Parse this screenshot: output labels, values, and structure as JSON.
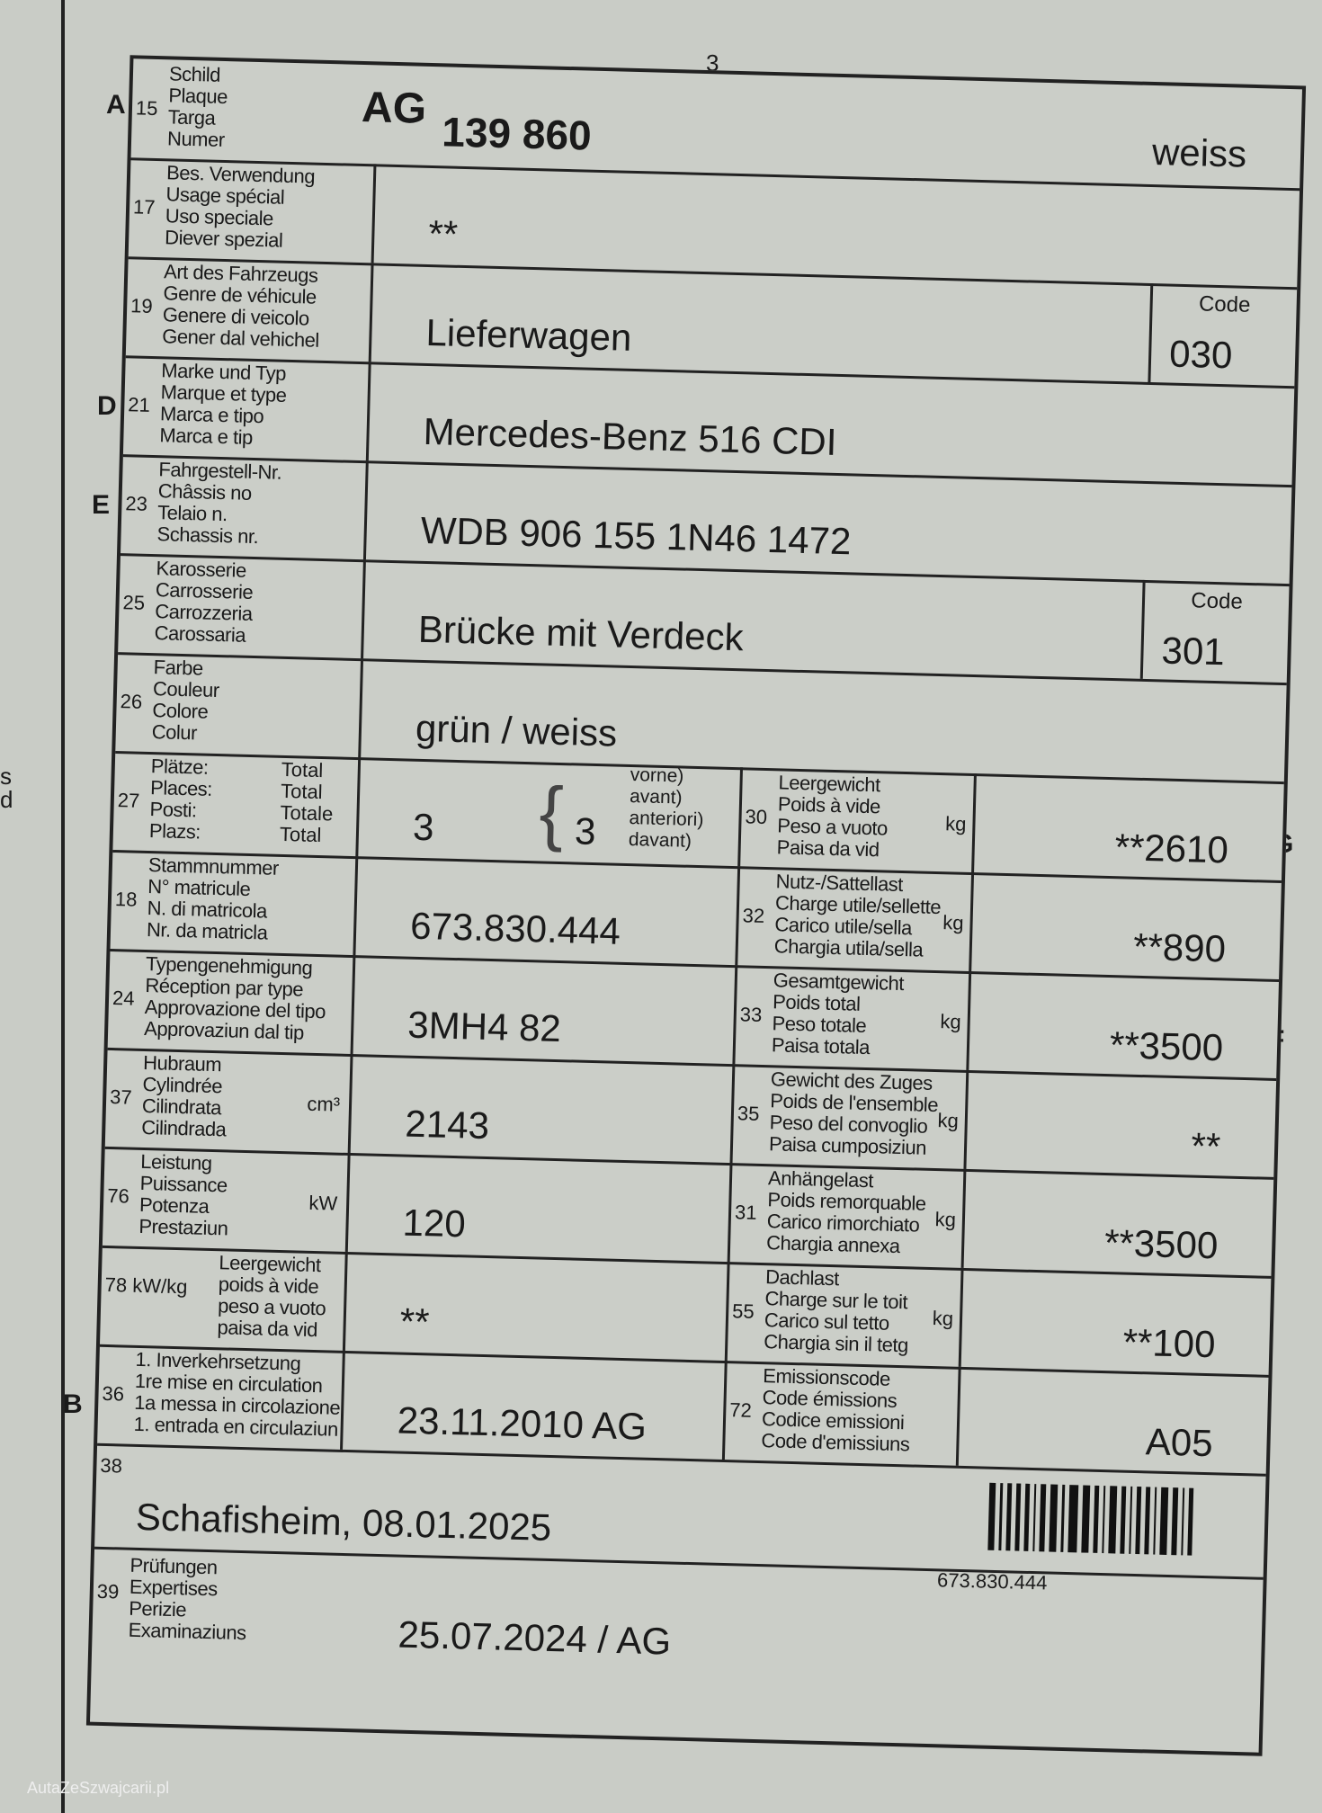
{
  "page_number": "3",
  "watermark": "AutaZeSzwajcarii.pl",
  "left_page_fragments": [
    "s",
    "d"
  ],
  "side_letters": {
    "A": "A",
    "D": "D",
    "E": "E",
    "B": "B",
    "G": "G",
    "F": "F"
  },
  "plate": {
    "num": "15",
    "labels": [
      "Schild",
      "Plaque",
      "Targa",
      "Numer"
    ],
    "canton": "AG",
    "number": "139 860",
    "color": "weiss"
  },
  "usage": {
    "num": "17",
    "labels": [
      "Bes. Verwendung",
      "Usage spécial",
      "Uso speciale",
      "Diever spezial"
    ],
    "value": "**"
  },
  "vehicle_type": {
    "num": "19",
    "labels": [
      "Art des Fahrzeugs",
      "Genre de véhicule",
      "Genere di veicolo",
      "Gener dal vehichel"
    ],
    "value": "Lieferwagen",
    "code_label": "Code",
    "code": "030"
  },
  "make": {
    "num": "21",
    "labels": [
      "Marke und Typ",
      "Marque et type",
      "Marca e tipo",
      "Marca e tip"
    ],
    "value": "Mercedes-Benz 516 CDI"
  },
  "chassis": {
    "num": "23",
    "labels": [
      "Fahrgestell-Nr.",
      "Châssis no",
      "Telaio n.",
      "Schassis nr."
    ],
    "value": "WDB 906 155 1N46 1472"
  },
  "body": {
    "num": "25",
    "labels": [
      "Karosserie",
      "Carrosserie",
      "Carrozzeria",
      "Carossaria"
    ],
    "value": "Brücke mit Verdeck",
    "code_label": "Code",
    "code": "301"
  },
  "color": {
    "num": "26",
    "labels": [
      "Farbe",
      "Couleur",
      "Colore",
      "Colur"
    ],
    "value": "grün / weiss"
  },
  "seats": {
    "num": "27",
    "labels": [
      "Plätze:",
      "Places:",
      "Posti:",
      "Plazs:"
    ],
    "totals": [
      "Total",
      "Total",
      "Totale",
      "Total"
    ],
    "value": "3",
    "front": "3",
    "front_labels": [
      "vorne)",
      "avant)",
      "anteriori)",
      "davant)"
    ]
  },
  "left_rows": [
    {
      "num": "18",
      "labels": [
        "Stammnummer",
        "N° matricule",
        "N. di matricola",
        "Nr. da matricla"
      ],
      "unit": "",
      "value": "673.830.444"
    },
    {
      "num": "24",
      "labels": [
        "Typengenehmigung",
        "Réception par type",
        "Approvazione del tipo",
        "Approvaziun dal tip"
      ],
      "unit": "",
      "value": "3MH4 82"
    },
    {
      "num": "37",
      "labels": [
        "Hubraum",
        "Cylindrée",
        "Cilindrata",
        "Cilindrada"
      ],
      "unit": "cm³",
      "value": "2143"
    },
    {
      "num": "76",
      "labels": [
        "Leistung",
        "Puissance",
        "Potenza",
        "Prestaziun"
      ],
      "unit": "kW",
      "value": "120"
    },
    {
      "num": "78 kW/kg",
      "labels": [
        "Leergewicht",
        "poids à vide",
        "peso a vuoto",
        "paisa da vid"
      ],
      "unit": "",
      "value": "**"
    },
    {
      "num": "36",
      "labels": [
        "1. Inverkehrsetzung",
        "1re mise en circulation",
        "1a messa in circolazione",
        "1. entrada en circulaziun"
      ],
      "unit": "",
      "value": "23.11.2010 AG"
    }
  ],
  "right_rows": [
    {
      "num": "30",
      "labels": [
        "Leergewicht",
        "Poids à vide",
        "Peso a vuoto",
        "Paisa da vid"
      ],
      "unit": "kg",
      "value": "**2610"
    },
    {
      "num": "32",
      "labels": [
        "Nutz-/Sattellast",
        "Charge utile/sellette",
        "Carico utile/sella",
        "Chargia utila/sella"
      ],
      "unit": "kg",
      "value": "**890"
    },
    {
      "num": "33",
      "labels": [
        "Gesamtgewicht",
        "Poids total",
        "Peso totale",
        "Paisa totala"
      ],
      "unit": "kg",
      "value": "**3500"
    },
    {
      "num": "35",
      "labels": [
        "Gewicht des Zuges",
        "Poids de l'ensemble",
        "Peso del convoglio",
        "Paisa cumposiziun"
      ],
      "unit": "kg",
      "value": "**"
    },
    {
      "num": "31",
      "labels": [
        "Anhängelast",
        "Poids remorquable",
        "Carico rimorchiato",
        "Chargia annexa"
      ],
      "unit": "kg",
      "value": "**3500"
    },
    {
      "num": "55",
      "labels": [
        "Dachlast",
        "Charge sur le toit",
        "Carico sul tetto",
        "Chargia sin il tetg"
      ],
      "unit": "kg",
      "value": "**100"
    },
    {
      "num": "72",
      "labels": [
        "Emissionscode",
        "Code émissions",
        "Codice emissioni",
        "Code d'emissiuns"
      ],
      "unit": "",
      "value": "A05"
    }
  ],
  "issue": {
    "num": "38",
    "value": "Schafisheim, 08.01.2025",
    "barcode_text": "673.830.444"
  },
  "inspections": {
    "num": "39",
    "labels": [
      "Prüfungen",
      "Expertises",
      "Perizie",
      "Examinaziuns"
    ],
    "value": "25.07.2024 / AG"
  }
}
